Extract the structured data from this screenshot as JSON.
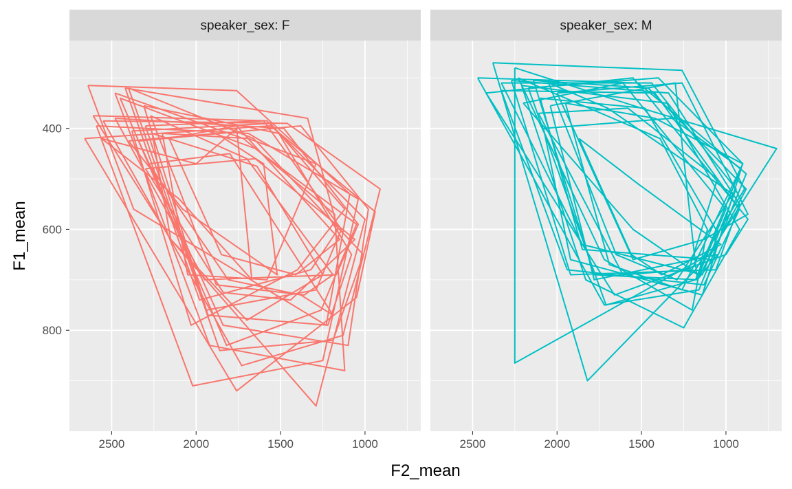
{
  "chart_data": {
    "type": "line",
    "facet_variable": "speaker_sex",
    "xlabel": "F2_mean",
    "ylabel": "F1_mean",
    "x_reversed": true,
    "y_reversed": true,
    "xlim": [
      2750,
      670
    ],
    "ylim": [
      1000,
      226
    ],
    "x_ticks": [
      2500,
      2000,
      1500,
      1000
    ],
    "y_ticks": [
      400,
      600,
      800
    ],
    "grid": true,
    "legend": "none",
    "colors": {
      "F": "#F8766D",
      "M": "#00BFC4",
      "panel": "#EBEBEB",
      "strip": "#D9D9D9",
      "grid": "#FFFFFF"
    },
    "panels": [
      {
        "strip_label": "speaker_sex: F",
        "series": [
          {
            "x": [
              2640,
              1760,
              1090,
              1230,
              2370,
              2640
            ],
            "y": [
              315,
              325,
              530,
              790,
              560,
              315
            ]
          },
          {
            "x": [
              2610,
              1580,
              1000,
              1290,
              2150,
              2610
            ],
            "y": [
              375,
              385,
              580,
              950,
              620,
              375
            ]
          },
          {
            "x": [
              2480,
              1720,
              1180,
              1120,
              1920,
              2480
            ],
            "y": [
              330,
              420,
              570,
              880,
              830,
              330
            ]
          },
          {
            "x": [
              2590,
              1690,
              1040,
              1250,
              2020,
              2590
            ],
            "y": [
              395,
              410,
              540,
              860,
              910,
              395
            ]
          },
          {
            "x": [
              2660,
              1560,
              940,
              1050,
              1760,
              2660
            ],
            "y": [
              420,
              395,
              565,
              735,
              920,
              420
            ]
          },
          {
            "x": [
              2550,
              1460,
              910,
              1130,
              1730,
              2550
            ],
            "y": [
              385,
              390,
              520,
              810,
              870,
              385
            ]
          },
          {
            "x": [
              2400,
              1660,
              1010,
              1190,
              1860,
              2400
            ],
            "y": [
              320,
              420,
              650,
              820,
              840,
              320
            ]
          },
          {
            "x": [
              2340,
              1380,
              980,
              1100,
              1840,
              2340
            ],
            "y": [
              425,
              395,
              560,
              830,
              790,
              425
            ]
          },
          {
            "x": [
              2450,
              1650,
              1050,
              1260,
              1820,
              2450
            ],
            "y": [
              340,
              440,
              590,
              760,
              830,
              340
            ]
          },
          {
            "x": [
              2310,
              1510,
              1080,
              1220,
              1930,
              2310
            ],
            "y": [
              355,
              410,
              650,
              790,
              770,
              355
            ]
          },
          {
            "x": [
              2480,
              1480,
              1040,
              1170,
              1950,
              2480
            ],
            "y": [
              380,
              400,
              590,
              690,
              700,
              380
            ]
          },
          {
            "x": [
              2300,
              1600,
              1140,
              1290,
              1940,
              2300
            ],
            "y": [
              395,
              385,
              600,
              720,
              760,
              395
            ]
          },
          {
            "x": [
              2270,
              1700,
              1190,
              1360,
              1880,
              2270
            ],
            "y": [
              375,
              460,
              690,
              730,
              710,
              375
            ]
          },
          {
            "x": [
              2380,
              1560,
              1120,
              1400,
              2030,
              2380
            ],
            "y": [
              405,
              390,
              560,
              680,
              790,
              405
            ]
          },
          {
            "x": [
              2420,
              1340,
              1160,
              1320,
              1980,
              2420
            ],
            "y": [
              320,
              380,
              600,
              680,
              740,
              320
            ]
          },
          {
            "x": [
              2200,
              1690,
              1290,
              1580,
              2050,
              2200
            ],
            "y": [
              410,
              420,
              470,
              700,
              690,
              410
            ]
          },
          {
            "x": [
              2160,
              1760,
              1150,
              1410,
              1850,
              2160
            ],
            "y": [
              420,
              395,
              620,
              690,
              650,
              420
            ]
          },
          {
            "x": [
              2260,
              1640,
              1250,
              1700,
              2150,
              2260
            ],
            "y": [
              410,
              475,
              690,
              780,
              620,
              410
            ]
          },
          {
            "x": [
              2400,
              1880,
              1600,
              1520,
              2080,
              2400
            ],
            "y": [
              425,
              410,
              470,
              690,
              560,
              425
            ]
          },
          {
            "x": [
              2300,
              1650,
              1060,
              1440,
              1840,
              2300
            ],
            "y": [
              480,
              460,
              620,
              740,
              725,
              480
            ]
          },
          {
            "x": [
              2560,
              2000,
              1760,
              1670,
              2100,
              2560
            ],
            "y": [
              420,
              470,
              400,
              700,
              540,
              420
            ]
          },
          {
            "x": [
              2280,
              1800,
              1190,
              1380,
              1810,
              2280
            ],
            "y": [
              470,
              450,
              770,
              730,
              700,
              470
            ]
          }
        ]
      },
      {
        "strip_label": "speaker_sex: M",
        "series": [
          {
            "x": [
              2380,
              1260,
              890,
              1180,
              1820,
              2380
            ],
            "y": [
              270,
              285,
              520,
              680,
              900,
              270
            ]
          },
          {
            "x": [
              2470,
              1520,
              880,
              1160,
              1720,
              2470
            ],
            "y": [
              300,
              310,
              490,
              720,
              750,
              300
            ]
          },
          {
            "x": [
              2250,
              1500,
              700,
              1100,
              2250,
              2250
            ],
            "y": [
              280,
              360,
              440,
              650,
              865,
              280
            ]
          },
          {
            "x": [
              2270,
              1340,
              920,
              1060,
              1920,
              2270
            ],
            "y": [
              305,
              330,
              550,
              680,
              690,
              305
            ]
          },
          {
            "x": [
              2330,
              1440,
              940,
              1140,
              1850,
              2330
            ],
            "y": [
              310,
              310,
              520,
              690,
              630,
              310
            ]
          },
          {
            "x": [
              2170,
              1400,
              900,
              1180,
              1710,
              2170
            ],
            "y": [
              320,
              300,
              470,
              700,
              750,
              320
            ]
          },
          {
            "x": [
              2210,
              1350,
              920,
              1250,
              1830,
              2210
            ],
            "y": [
              315,
              350,
              600,
              795,
              700,
              315
            ]
          },
          {
            "x": [
              2140,
              1460,
              880,
              1170,
              1780,
              2140
            ],
            "y": [
              305,
              320,
              520,
              700,
              690,
              305
            ]
          },
          {
            "x": [
              2420,
              1550,
              870,
              1000,
              1660,
              2420
            ],
            "y": [
              330,
              300,
              580,
              650,
              730,
              330
            ]
          },
          {
            "x": [
              2100,
              1480,
              1060,
              1070,
              1850,
              2100
            ],
            "y": [
              340,
              360,
              600,
              660,
              640,
              340
            ]
          },
          {
            "x": [
              2330,
              1420,
              920,
              1130,
              1940,
              2330
            ],
            "y": [
              325,
              330,
              560,
              710,
              680,
              325
            ]
          },
          {
            "x": [
              2040,
              1300,
              1170,
              1050,
              1780,
              2040
            ],
            "y": [
              355,
              310,
              700,
              650,
              700,
              355
            ]
          },
          {
            "x": [
              2110,
              1580,
              1050,
              1220,
              1610,
              2110
            ],
            "y": [
              370,
              360,
              500,
              680,
              690,
              370
            ]
          },
          {
            "x": [
              2080,
              1320,
              910,
              1140,
              1920,
              2080
            ],
            "y": [
              400,
              380,
              480,
              730,
              660,
              400
            ]
          },
          {
            "x": [
              2050,
              1700,
              960,
              1290,
              1650,
              2050
            ],
            "y": [
              310,
              360,
              530,
              700,
              650,
              310
            ]
          },
          {
            "x": [
              2230,
              1390,
              1110,
              1200,
              1720,
              2230
            ],
            "y": [
              300,
              420,
              600,
              760,
              660,
              300
            ]
          },
          {
            "x": [
              2000,
              1260,
              870,
              1130,
              1550,
              2000
            ],
            "y": [
              330,
              310,
              570,
              620,
              660,
              330
            ]
          },
          {
            "x": [
              1950,
              1420,
              900,
              1260,
              1690,
              1950
            ],
            "y": [
              350,
              380,
              470,
              720,
              670,
              350
            ]
          },
          {
            "x": [
              1870,
              1520,
              1030,
              1380,
              1560,
              1870
            ],
            "y": [
              420,
              510,
              630,
              690,
              650,
              420
            ]
          },
          {
            "x": [
              2200,
              1610,
              1000,
              1160,
              1550,
              2200
            ],
            "y": [
              350,
              310,
              560,
              690,
              600,
              350
            ]
          }
        ]
      }
    ]
  }
}
